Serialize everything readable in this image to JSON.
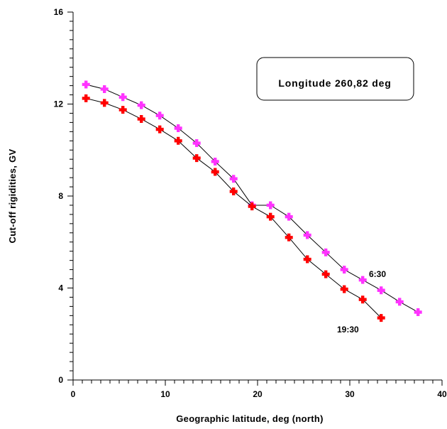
{
  "chart_data": {
    "type": "line",
    "title": "",
    "xlabel": "Geographic latitude, deg (north)",
    "ylabel": "Cut-off rigidities, GV",
    "xlim": [
      0,
      40
    ],
    "ylim": [
      0,
      16
    ],
    "x_ticks": [
      0,
      10,
      20,
      30,
      40
    ],
    "y_ticks": [
      0,
      4,
      8,
      12,
      16
    ],
    "x_tick_labels": [
      "0",
      "10",
      "20",
      "30",
      "40"
    ],
    "y_tick_labels": [
      "0",
      "4",
      "8",
      "12",
      "16"
    ],
    "x_minor_step": 1,
    "y_minor_step": 0.4,
    "grid": false,
    "annotation_box": "Longitude 260,82 deg",
    "series": [
      {
        "name": "6:30",
        "color": "#ff33ff",
        "marker": "plus",
        "x": [
          1.4,
          3.4,
          5.4,
          7.4,
          9.4,
          11.4,
          13.4,
          15.4,
          17.4,
          19.4,
          21.4,
          23.4,
          25.4,
          27.4,
          29.4,
          31.4,
          33.4,
          35.4,
          37.4
        ],
        "y": [
          12.85,
          12.65,
          12.3,
          11.95,
          11.5,
          10.95,
          10.3,
          9.5,
          8.75,
          7.6,
          7.6,
          7.1,
          6.3,
          5.55,
          4.8,
          4.35,
          3.9,
          3.4,
          2.95
        ]
      },
      {
        "name": "19:30",
        "color": "#ff0000",
        "marker": "plus",
        "x": [
          1.4,
          3.4,
          5.4,
          7.4,
          9.4,
          11.4,
          13.4,
          15.4,
          17.4,
          19.4,
          21.4,
          23.4,
          25.4,
          27.4,
          29.4,
          31.4,
          33.4
        ],
        "y": [
          12.25,
          12.05,
          11.75,
          11.35,
          10.9,
          10.4,
          9.65,
          9.05,
          8.2,
          7.55,
          7.1,
          6.2,
          5.25,
          4.6,
          3.95,
          3.5,
          2.7
        ]
      }
    ]
  }
}
